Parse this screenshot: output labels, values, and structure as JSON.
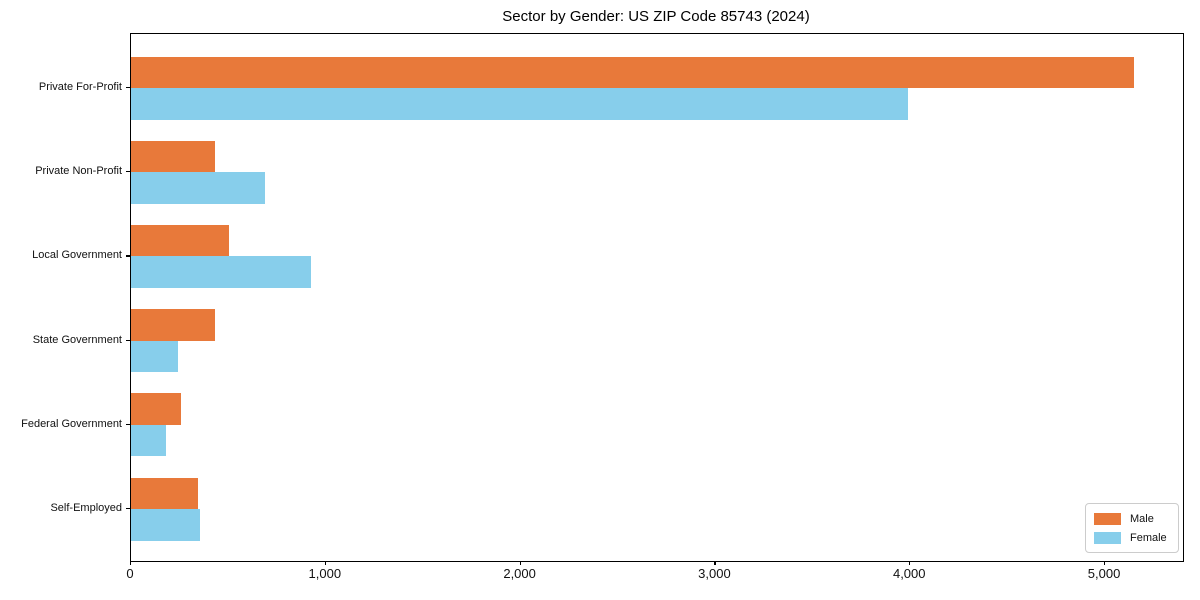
{
  "chart_data": {
    "type": "bar",
    "orientation": "horizontal",
    "title": "Sector by Gender: US ZIP Code 85743 (2024)",
    "categories": [
      "Private For-Profit",
      "Private Non-Profit",
      "Local Government",
      "State Government",
      "Federal Government",
      "Self-Employed"
    ],
    "series": [
      {
        "name": "Male",
        "color": "#e8793a",
        "values": [
          5150,
          430,
          505,
          430,
          255,
          345
        ]
      },
      {
        "name": "Female",
        "color": "#87ceeb",
        "values": [
          3990,
          690,
          925,
          240,
          180,
          355
        ]
      }
    ],
    "xlabel": "",
    "ylabel": "",
    "xlim": [
      0,
      5400
    ],
    "xticks": [
      0,
      1000,
      2000,
      3000,
      4000,
      5000
    ],
    "xtick_labels": [
      "0",
      "1,000",
      "2,000",
      "3,000",
      "4,000",
      "5,000"
    ],
    "grid": false,
    "legend_position": "lower right",
    "background_color": "#ffffff",
    "spine_color": "#000000"
  }
}
